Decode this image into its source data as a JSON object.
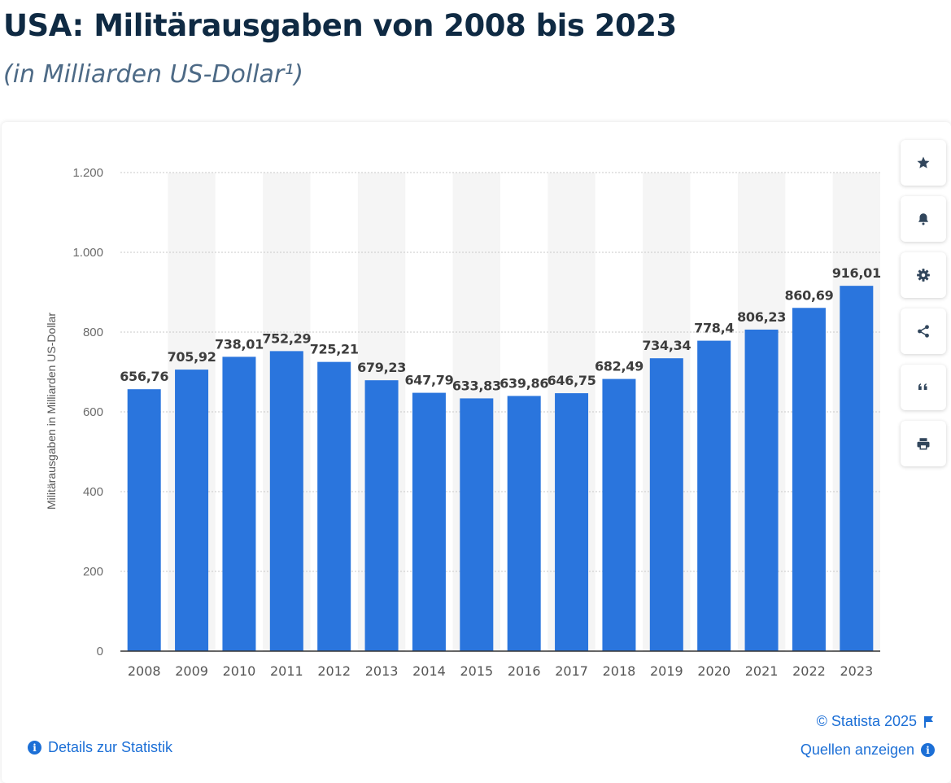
{
  "header": {
    "title": "USA: Militärausgaben von 2008 bis 2023",
    "subtitle": "(in Milliarden US-Dollar¹)"
  },
  "chart_data": {
    "type": "bar",
    "categories": [
      "2008",
      "2009",
      "2010",
      "2011",
      "2012",
      "2013",
      "2014",
      "2015",
      "2016",
      "2017",
      "2018",
      "2019",
      "2020",
      "2021",
      "2022",
      "2023"
    ],
    "values": [
      656.76,
      705.92,
      738.01,
      752.29,
      725.21,
      679.23,
      647.79,
      633.83,
      639.86,
      646.75,
      682.49,
      734.34,
      778.4,
      806.23,
      860.69,
      916.01
    ],
    "value_labels": [
      "656,76",
      "705,92",
      "738,01",
      "752,29",
      "725,21",
      "679,23",
      "647,79",
      "633,83",
      "639,86",
      "646,75",
      "682,49",
      "734,34",
      "778,4",
      "806,23",
      "860,69",
      "916,01"
    ],
    "ylabel": "Militärausgaben in Milliarden US-Dollar",
    "xlabel": "",
    "ylim": [
      0,
      1200
    ],
    "yticks": [
      0,
      200,
      400,
      600,
      800,
      1000,
      1200
    ],
    "ytick_labels": [
      "0",
      "200",
      "400",
      "600",
      "800",
      "1.000",
      "1.200"
    ],
    "grid": true,
    "bar_color": "#2a75dd"
  },
  "toolbar": {
    "buttons": [
      {
        "name": "favorite-button",
        "icon": "star-icon"
      },
      {
        "name": "notification-button",
        "icon": "bell-icon"
      },
      {
        "name": "settings-button",
        "icon": "gear-icon"
      },
      {
        "name": "share-button",
        "icon": "share-icon"
      },
      {
        "name": "cite-button",
        "icon": "quote-icon"
      },
      {
        "name": "print-button",
        "icon": "printer-icon"
      }
    ]
  },
  "footer": {
    "copyright": "© Statista 2025",
    "details_link": "Details zur Statistik",
    "sources_link": "Quellen anzeigen"
  },
  "colors": {
    "accent": "#1c6fd6",
    "bar": "#2a75dd",
    "title": "#0f2a43",
    "icon": "#31465c"
  }
}
